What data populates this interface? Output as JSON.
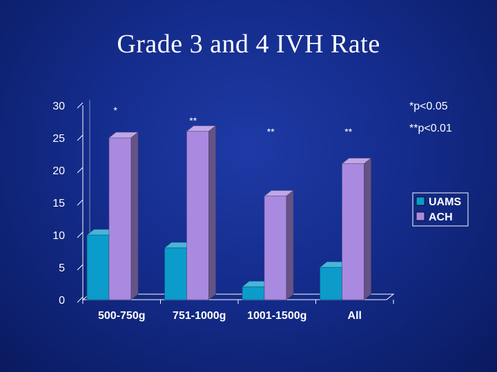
{
  "slide": {
    "title": "Grade 3 and 4 IVH Rate"
  },
  "chart_data": {
    "type": "bar",
    "categories": [
      "500-750g",
      "751-1000g",
      "1001-1500g",
      "All"
    ],
    "series": [
      {
        "name": "UAMS",
        "values": [
          10,
          8,
          2,
          5
        ]
      },
      {
        "name": "ACH",
        "values": [
          25,
          26,
          16,
          21
        ]
      }
    ],
    "ylim": [
      0,
      30
    ],
    "yticks": [
      0,
      5,
      10,
      15,
      20,
      25,
      30
    ],
    "significance_marks": [
      "*",
      "**",
      "**",
      "**"
    ],
    "notes": [
      "*p<0.05",
      "**p<0.01"
    ],
    "legend_position": "right",
    "colors": {
      "UAMS": "#0b9ccc",
      "ACH": "#a98ae0",
      "axis": "#ffffff",
      "background": "#142c8c"
    }
  }
}
